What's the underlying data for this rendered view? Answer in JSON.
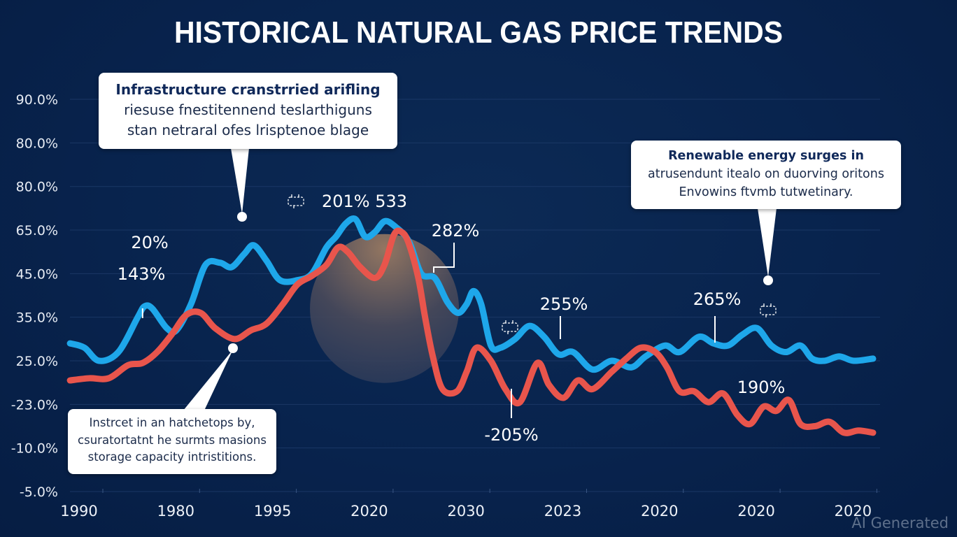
{
  "chart_data": {
    "type": "line",
    "title": "HISTORICAL NATURAL GAS PRICE TRENDS",
    "xlabel": "",
    "ylabel": "",
    "x_tick_labels": [
      "1990",
      "1980",
      "1995",
      "2020",
      "2030",
      "2023",
      "2020",
      "2020",
      "2020"
    ],
    "y_tick_labels": [
      "-5.0%",
      "-10.0%",
      "-23.0%",
      "25.0%",
      "35.0%",
      "45.0%",
      "65.0%",
      "80.0%",
      "80.0%",
      "90.0%"
    ],
    "y_axis_note": "Values are expressed in axis-tick units: 0 = bottom tick (-5.0%), 9 = top tick (90.0%); x in tick units: 0 = first tick, 8 = last tick",
    "xlim": [
      -0.05,
      8.3
    ],
    "ylim": [
      0,
      9
    ],
    "grid": true,
    "legend": "none",
    "series": [
      {
        "name": "blue-series",
        "color": "#1ea7ea",
        "points": [
          [
            -0.05,
            3.4
          ],
          [
            0.1,
            3.3
          ],
          [
            0.25,
            3.0
          ],
          [
            0.45,
            3.2
          ],
          [
            0.65,
            4.0
          ],
          [
            0.72,
            4.25
          ],
          [
            0.8,
            4.2
          ],
          [
            0.95,
            3.75
          ],
          [
            1.05,
            3.7
          ],
          [
            1.2,
            4.3
          ],
          [
            1.35,
            5.2
          ],
          [
            1.5,
            5.25
          ],
          [
            1.62,
            5.15
          ],
          [
            1.75,
            5.45
          ],
          [
            1.85,
            5.65
          ],
          [
            1.98,
            5.3
          ],
          [
            2.12,
            4.85
          ],
          [
            2.3,
            4.85
          ],
          [
            2.45,
            5.0
          ],
          [
            2.6,
            5.6
          ],
          [
            2.7,
            5.85
          ],
          [
            2.8,
            6.15
          ],
          [
            2.9,
            6.25
          ],
          [
            3.0,
            5.85
          ],
          [
            3.1,
            5.95
          ],
          [
            3.2,
            6.2
          ],
          [
            3.3,
            6.1
          ],
          [
            3.45,
            5.75
          ],
          [
            3.58,
            5.0
          ],
          [
            3.72,
            4.9
          ],
          [
            3.85,
            4.35
          ],
          [
            3.96,
            4.1
          ],
          [
            4.05,
            4.3
          ],
          [
            4.12,
            4.6
          ],
          [
            4.2,
            4.3
          ],
          [
            4.3,
            3.35
          ],
          [
            4.4,
            3.3
          ],
          [
            4.55,
            3.5
          ],
          [
            4.7,
            3.8
          ],
          [
            4.85,
            3.55
          ],
          [
            5.0,
            3.15
          ],
          [
            5.15,
            3.2
          ],
          [
            5.35,
            2.8
          ],
          [
            5.55,
            3.0
          ],
          [
            5.75,
            2.85
          ],
          [
            5.9,
            3.1
          ],
          [
            6.1,
            3.35
          ],
          [
            6.25,
            3.2
          ],
          [
            6.45,
            3.55
          ],
          [
            6.6,
            3.4
          ],
          [
            6.75,
            3.35
          ],
          [
            6.9,
            3.6
          ],
          [
            7.05,
            3.75
          ],
          [
            7.2,
            3.35
          ],
          [
            7.35,
            3.2
          ],
          [
            7.5,
            3.35
          ],
          [
            7.62,
            3.05
          ],
          [
            7.75,
            3.0
          ],
          [
            7.9,
            3.1
          ],
          [
            8.05,
            3.0
          ],
          [
            8.25,
            3.05
          ]
        ]
      },
      {
        "name": "red-series",
        "color": "#e8554c",
        "points": [
          [
            -0.05,
            2.55
          ],
          [
            0.15,
            2.6
          ],
          [
            0.35,
            2.6
          ],
          [
            0.55,
            2.9
          ],
          [
            0.7,
            2.95
          ],
          [
            0.85,
            3.2
          ],
          [
            1.0,
            3.6
          ],
          [
            1.15,
            4.05
          ],
          [
            1.3,
            4.1
          ],
          [
            1.45,
            3.75
          ],
          [
            1.65,
            3.5
          ],
          [
            1.82,
            3.7
          ],
          [
            1.98,
            3.85
          ],
          [
            2.15,
            4.3
          ],
          [
            2.3,
            4.75
          ],
          [
            2.45,
            4.95
          ],
          [
            2.6,
            5.2
          ],
          [
            2.72,
            5.6
          ],
          [
            2.82,
            5.5
          ],
          [
            2.95,
            5.15
          ],
          [
            3.1,
            4.9
          ],
          [
            3.2,
            5.2
          ],
          [
            3.3,
            5.9
          ],
          [
            3.38,
            5.95
          ],
          [
            3.45,
            5.7
          ],
          [
            3.55,
            4.9
          ],
          [
            3.62,
            4.0
          ],
          [
            3.7,
            3.1
          ],
          [
            3.8,
            2.35
          ],
          [
            3.95,
            2.3
          ],
          [
            4.05,
            2.75
          ],
          [
            4.15,
            3.3
          ],
          [
            4.3,
            3.0
          ],
          [
            4.45,
            2.35
          ],
          [
            4.6,
            2.05
          ],
          [
            4.78,
            2.95
          ],
          [
            4.9,
            2.45
          ],
          [
            5.05,
            2.15
          ],
          [
            5.2,
            2.55
          ],
          [
            5.35,
            2.35
          ],
          [
            5.55,
            2.75
          ],
          [
            5.7,
            3.05
          ],
          [
            5.85,
            3.3
          ],
          [
            6.0,
            3.2
          ],
          [
            6.12,
            2.85
          ],
          [
            6.25,
            2.3
          ],
          [
            6.4,
            2.3
          ],
          [
            6.55,
            2.05
          ],
          [
            6.7,
            2.25
          ],
          [
            6.85,
            1.75
          ],
          [
            6.98,
            1.55
          ],
          [
            7.12,
            1.95
          ],
          [
            7.25,
            1.85
          ],
          [
            7.38,
            2.1
          ],
          [
            7.5,
            1.55
          ],
          [
            7.65,
            1.5
          ],
          [
            7.8,
            1.6
          ],
          [
            7.95,
            1.35
          ],
          [
            8.1,
            1.4
          ],
          [
            8.25,
            1.35
          ]
        ]
      }
    ],
    "highlight_circle": {
      "center": [
        3.2,
        4.2
      ],
      "radius_x_units": 0.77,
      "color": "#8a6f5e"
    },
    "annotations": [
      {
        "id": "a-143",
        "text": "143%",
        "at": [
          0.7,
          4.3
        ],
        "leader": true
      },
      {
        "id": "a-20",
        "text": "20%",
        "at": [
          0.77,
          5.6
        ],
        "leader": false
      },
      {
        "id": "a-201",
        "text": "201% 533",
        "at": [
          3.0,
          6.8
        ],
        "leader": false,
        "icon": "gas-pump-icon"
      },
      {
        "id": "a-282",
        "text": "282%",
        "at": [
          4.08,
          5.8
        ],
        "leader": true
      },
      {
        "id": "a-255",
        "text": "255%",
        "at": [
          5.05,
          3.6
        ],
        "leader": true,
        "icon": "factory-icon"
      },
      {
        "id": "a-265",
        "text": "265%",
        "at": [
          6.63,
          3.5
        ],
        "leader": true
      },
      {
        "id": "a-205",
        "text": "-205%",
        "at": [
          4.5,
          1.55
        ],
        "leader": true
      },
      {
        "id": "a-190",
        "text": "190%",
        "at": [
          7.1,
          2.4
        ],
        "leader": false,
        "icon": "tanker-icon"
      }
    ]
  },
  "callouts": {
    "top": {
      "lines": [
        "Infrastructure cranstrried arifling",
        "riesuse fnestitennend teslarthiguns",
        "stan netraral ofes lrisptenoe blage"
      ]
    },
    "right": {
      "lines": [
        "Renewable energy surges in",
        "atrusendunt itealo on duorving oritons",
        "Envowins ftvmb tutwetinary."
      ]
    },
    "bottom": {
      "lines": [
        "Instrcet in an hatchetops by,",
        "csuratortatnt he surmts masions",
        "storage capacity intristitions."
      ]
    }
  },
  "watermark": "AI Generated"
}
